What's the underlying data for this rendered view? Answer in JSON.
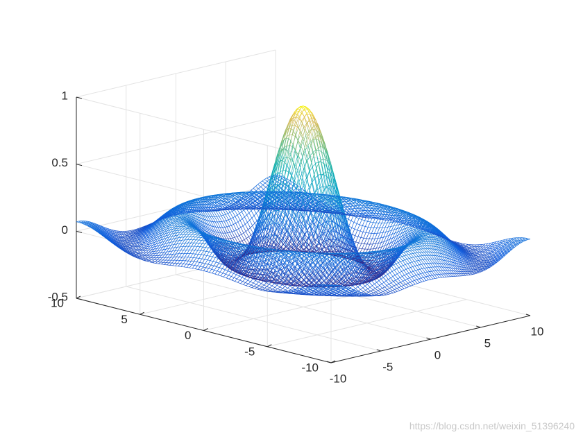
{
  "chart_data": {
    "type": "surface-mesh",
    "function": "sin(r)/r",
    "colormap": "parula",
    "grid": true,
    "xlim": [
      -10,
      10
    ],
    "ylim": [
      -10,
      10
    ],
    "zlim": [
      -0.5,
      1
    ],
    "x_ticks": [
      "-10",
      "-5",
      "0",
      "5",
      "10"
    ],
    "y_ticks": [
      "-10",
      "-5",
      "0",
      "5",
      "10"
    ],
    "z_ticks": [
      "-0.5",
      "0",
      "0.5",
      "1"
    ],
    "x_tick_values": [
      -10,
      -5,
      0,
      5,
      10
    ],
    "y_tick_values": [
      -10,
      -5,
      0,
      5,
      10
    ],
    "z_tick_values": [
      -0.5,
      0,
      0.5,
      1
    ],
    "peak": {
      "x": 0,
      "y": 0,
      "z": 1
    },
    "trough_min_z": -0.22,
    "view": {
      "azimuth": -37.5,
      "elevation": 30
    }
  },
  "watermark": "https://blog.csdn.net/weixin_51396240"
}
